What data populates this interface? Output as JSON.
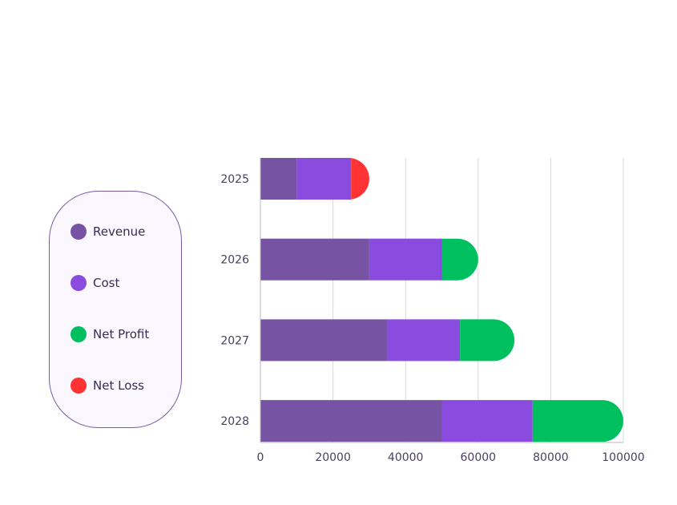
{
  "chart_data": {
    "type": "bar",
    "orientation": "horizontal",
    "stacked": true,
    "categories": [
      "2025",
      "2026",
      "2027",
      "2028"
    ],
    "series": [
      {
        "name": "Revenue",
        "color": "#7653a3",
        "values": [
          10000,
          30000,
          35000,
          50000
        ]
      },
      {
        "name": "Cost",
        "color": "#8a4bdf",
        "values": [
          15000,
          20000,
          20000,
          25000
        ]
      },
      {
        "name": "Net Profit",
        "color": "#00bf5f",
        "values": [
          0,
          10000,
          15000,
          25000
        ]
      },
      {
        "name": "Net Loss",
        "color": "#ff3333",
        "values": [
          5000,
          0,
          0,
          0
        ]
      }
    ],
    "xlim": [
      0,
      100000
    ],
    "xticks": [
      "0",
      "20000",
      "40000",
      "60000",
      "80000",
      "100000"
    ],
    "grid": true,
    "legend_position": "left"
  }
}
